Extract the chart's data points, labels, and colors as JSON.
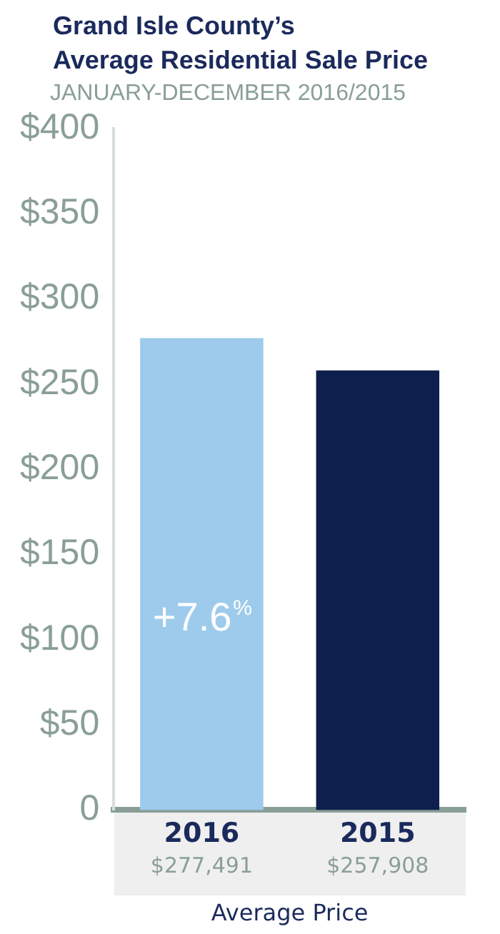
{
  "chart_data": {
    "type": "bar",
    "title": "Grand Isle County’s\nAverage Residential Sale Price",
    "subtitle": "JANUARY-DECEMBER 2016/2015",
    "xlabel": "Average Price",
    "categories": [
      "2016",
      "2015"
    ],
    "values": [
      277,
      258
    ],
    "colors": [
      "#9ecbec",
      "#0e1f4b"
    ],
    "ylim": [
      0,
      400
    ],
    "yticks": [
      0,
      {
        "value": 50,
        "label": "$50"
      },
      {
        "value": 100,
        "label": "$100"
      },
      {
        "value": 150,
        "label": "$150"
      },
      {
        "value": 200,
        "label": "$200"
      },
      {
        "value": 250,
        "label": "$250"
      },
      {
        "value": 300,
        "label": "$300"
      },
      {
        "value": 350,
        "label": "$350"
      },
      {
        "value": 400,
        "label": "$400"
      }
    ],
    "annotations": [
      "+7.6%",
      "$277,491",
      "$257,908"
    ],
    "grid": false,
    "legend": false
  }
}
